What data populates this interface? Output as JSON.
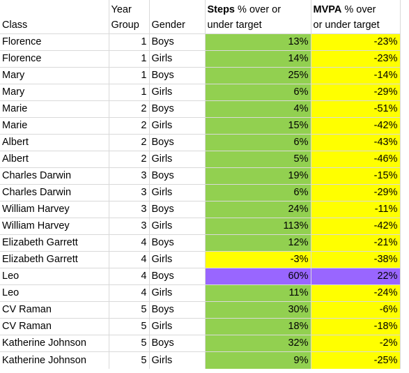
{
  "headers": {
    "class": "Class",
    "year_line1": "Year",
    "year_line2": "Group",
    "gender": "Gender",
    "steps_bold": "Steps",
    "steps_line1_rest": " % over or",
    "steps_line2": "under target",
    "mvpa_bold": "MVPA",
    "mvpa_line1_rest": " % over",
    "mvpa_line2": "or under target"
  },
  "colors": {
    "green": "#92d050",
    "yellow": "#ffff00",
    "purple": "#9966ff"
  },
  "rows": [
    {
      "class": "Florence",
      "year": "1",
      "gender": "Boys",
      "steps": "13%",
      "steps_color": "green",
      "mvpa": "-23%",
      "mvpa_color": "yellow"
    },
    {
      "class": "Florence",
      "year": "1",
      "gender": "Girls",
      "steps": "14%",
      "steps_color": "green",
      "mvpa": "-23%",
      "mvpa_color": "yellow"
    },
    {
      "class": "Mary",
      "year": "1",
      "gender": "Boys",
      "steps": "25%",
      "steps_color": "green",
      "mvpa": "-14%",
      "mvpa_color": "yellow"
    },
    {
      "class": "Mary",
      "year": "1",
      "gender": "Girls",
      "steps": "6%",
      "steps_color": "green",
      "mvpa": "-29%",
      "mvpa_color": "yellow"
    },
    {
      "class": "Marie",
      "year": "2",
      "gender": "Boys",
      "steps": "4%",
      "steps_color": "green",
      "mvpa": "-51%",
      "mvpa_color": "yellow"
    },
    {
      "class": "Marie",
      "year": "2",
      "gender": "Girls",
      "steps": "15%",
      "steps_color": "green",
      "mvpa": "-42%",
      "mvpa_color": "yellow"
    },
    {
      "class": "Albert",
      "year": "2",
      "gender": "Boys",
      "steps": "6%",
      "steps_color": "green",
      "mvpa": "-43%",
      "mvpa_color": "yellow"
    },
    {
      "class": "Albert",
      "year": "2",
      "gender": "Girls",
      "steps": "5%",
      "steps_color": "green",
      "mvpa": "-46%",
      "mvpa_color": "yellow"
    },
    {
      "class": "Charles Darwin",
      "year": "3",
      "gender": "Boys",
      "steps": "19%",
      "steps_color": "green",
      "mvpa": "-15%",
      "mvpa_color": "yellow"
    },
    {
      "class": "Charles Darwin",
      "year": "3",
      "gender": "Girls",
      "steps": "6%",
      "steps_color": "green",
      "mvpa": "-29%",
      "mvpa_color": "yellow"
    },
    {
      "class": "William Harvey",
      "year": "3",
      "gender": "Boys",
      "steps": "24%",
      "steps_color": "green",
      "mvpa": "-11%",
      "mvpa_color": "yellow"
    },
    {
      "class": "William Harvey",
      "year": "3",
      "gender": "Girls",
      "steps": "113%",
      "steps_color": "green",
      "mvpa": "-42%",
      "mvpa_color": "yellow"
    },
    {
      "class": "Elizabeth Garrett",
      "year": "4",
      "gender": "Boys",
      "steps": "12%",
      "steps_color": "green",
      "mvpa": "-21%",
      "mvpa_color": "yellow"
    },
    {
      "class": "Elizabeth Garrett",
      "year": "4",
      "gender": "Girls",
      "steps": "-3%",
      "steps_color": "yellow",
      "mvpa": "-38%",
      "mvpa_color": "yellow"
    },
    {
      "class": "Leo",
      "year": "4",
      "gender": "Boys",
      "steps": "60%",
      "steps_color": "purple",
      "mvpa": "22%",
      "mvpa_color": "purple"
    },
    {
      "class": "Leo",
      "year": "4",
      "gender": "Girls",
      "steps": "11%",
      "steps_color": "green",
      "mvpa": "-24%",
      "mvpa_color": "yellow"
    },
    {
      "class": "CV Raman",
      "year": "5",
      "gender": "Boys",
      "steps": "30%",
      "steps_color": "green",
      "mvpa": "-6%",
      "mvpa_color": "yellow"
    },
    {
      "class": "CV Raman",
      "year": "5",
      "gender": "Girls",
      "steps": "18%",
      "steps_color": "green",
      "mvpa": "-18%",
      "mvpa_color": "yellow"
    },
    {
      "class": "Katherine Johnson",
      "year": "5",
      "gender": "Boys",
      "steps": "32%",
      "steps_color": "green",
      "mvpa": "-2%",
      "mvpa_color": "yellow"
    },
    {
      "class": "Katherine Johnson",
      "year": "5",
      "gender": "Girls",
      "steps": "9%",
      "steps_color": "green",
      "mvpa": "-25%",
      "mvpa_color": "yellow"
    }
  ]
}
